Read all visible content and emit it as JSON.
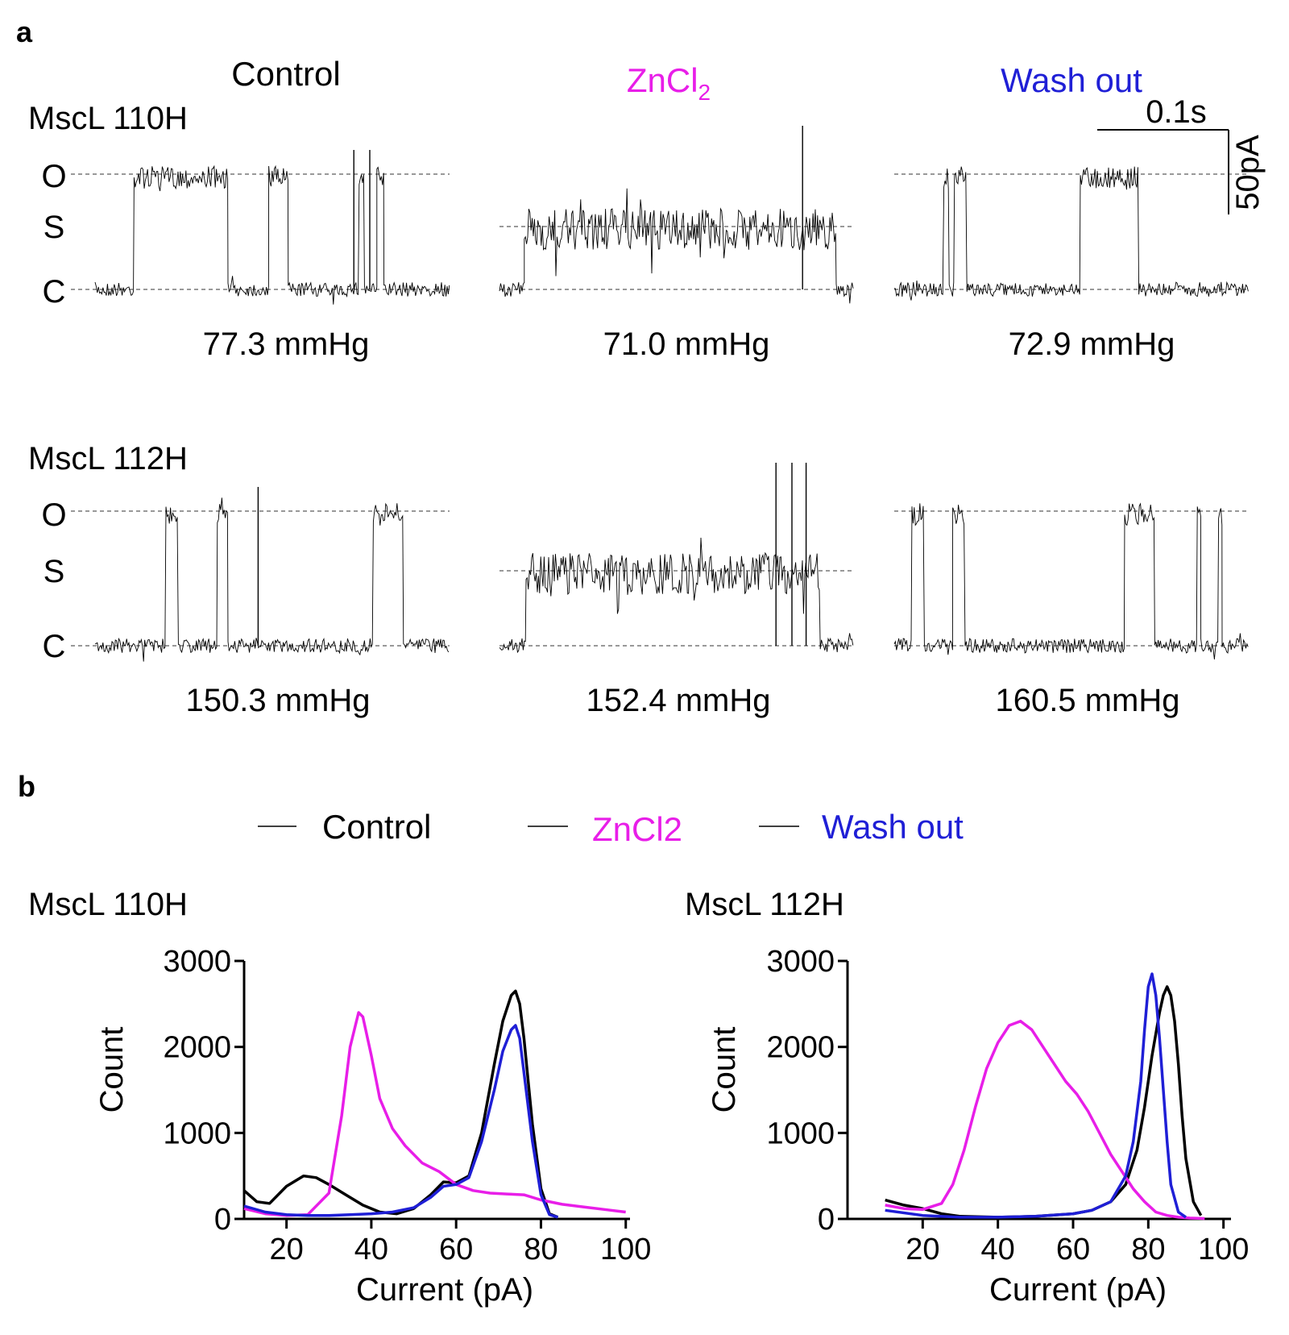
{
  "figure": {
    "panel_a_label": "a",
    "panel_b_label": "b",
    "conditions": [
      {
        "label": "Control",
        "color": "#000000"
      },
      {
        "label": "ZnCl",
        "sub": "2",
        "color": "#e81ee8"
      },
      {
        "label": "Wash out",
        "color": "#1f1fd6"
      }
    ],
    "states": [
      "O",
      "S",
      "C"
    ],
    "scalebar": {
      "time": "0.1s",
      "current": "50pA"
    },
    "rows": [
      {
        "name": "MscL 110H",
        "pressures": [
          "77.3  mmHg",
          "71.0  mmHg",
          "72.9  mmHg"
        ],
        "traces": [
          {
            "mode": "OC",
            "fracs": [
              0.0,
              0.11,
              0.375,
              0.49,
              0.545,
              0.745,
              0.76,
              0.795,
              0.815,
              1.0
            ],
            "spikes": [
              0.73,
              0.775
            ]
          },
          {
            "mode": "SC",
            "fracs": [
              0.0,
              0.07,
              0.95,
              1.0
            ],
            "spikes": [
              0.855
            ]
          },
          {
            "mode": "OC",
            "fracs": [
              0.0,
              0.14,
              0.155,
              0.17,
              0.205,
              0.525,
              0.69,
              1.0
            ],
            "spikes": []
          }
        ]
      },
      {
        "name": "MscL 112H",
        "pressures": [
          "150.3  mmHg",
          "152.4  mmHg",
          "160.5  mmHg"
        ],
        "traces": [
          {
            "mode": "OC",
            "fracs": [
              0.0,
              0.2,
              0.235,
              0.345,
              0.375,
              0.785,
              0.87,
              1.0
            ],
            "spikes": [
              0.46
            ]
          },
          {
            "mode": "SC",
            "fracs": [
              0.0,
              0.075,
              0.905,
              1.0
            ],
            "spikes": [
              0.78,
              0.825,
              0.865
            ]
          },
          {
            "mode": "OC",
            "fracs": [
              0.0,
              0.05,
              0.085,
              0.165,
              0.2,
              0.65,
              0.735,
              0.855,
              0.865,
              0.915,
              0.925,
              1.0
            ],
            "spikes": []
          }
        ]
      }
    ],
    "legend": [
      {
        "label": "Control",
        "color": "#000000"
      },
      {
        "label": "ZnCl2",
        "color": "#e81ee8"
      },
      {
        "label": "Wash out",
        "color": "#1f1fd6"
      }
    ]
  },
  "chart_data": [
    {
      "type": "line",
      "title": "MscL 110H",
      "xlabel": "Current (pA)",
      "ylabel": "Count",
      "xlim": [
        10,
        101
      ],
      "ylim": [
        0,
        3000
      ],
      "xticks": [
        20,
        40,
        60,
        80,
        100
      ],
      "yticks": [
        0,
        1000,
        2000,
        3000
      ],
      "series": [
        {
          "name": "Control",
          "color": "#000000",
          "x": [
            10,
            13,
            16,
            20,
            24,
            27,
            30,
            34,
            38,
            42,
            46,
            50,
            54,
            57,
            60,
            63,
            66,
            69,
            71,
            73,
            74,
            75,
            76,
            78,
            80,
            82,
            84
          ],
          "y": [
            330,
            200,
            180,
            380,
            500,
            480,
            400,
            280,
            160,
            80,
            60,
            120,
            280,
            430,
            420,
            500,
            1000,
            1800,
            2300,
            2600,
            2650,
            2500,
            2100,
            1100,
            350,
            60,
            20
          ]
        },
        {
          "name": "ZnCl2",
          "color": "#e81ee8",
          "x": [
            10,
            15,
            20,
            25,
            30,
            33,
            35,
            37,
            38,
            40,
            42,
            45,
            48,
            52,
            56,
            60,
            64,
            68,
            72,
            76,
            80,
            85,
            90,
            95,
            100
          ],
          "y": [
            120,
            60,
            40,
            50,
            300,
            1200,
            2000,
            2400,
            2350,
            1900,
            1400,
            1050,
            850,
            650,
            550,
            400,
            330,
            300,
            290,
            280,
            220,
            170,
            140,
            110,
            80
          ]
        },
        {
          "name": "Wash out",
          "color": "#1f1fd6",
          "x": [
            10,
            15,
            20,
            25,
            30,
            35,
            40,
            45,
            50,
            54,
            57,
            60,
            63,
            66,
            69,
            71,
            73,
            74,
            75,
            76,
            78,
            80,
            82,
            84
          ],
          "y": [
            150,
            80,
            50,
            40,
            40,
            50,
            60,
            80,
            130,
            250,
            380,
            400,
            480,
            900,
            1500,
            1950,
            2200,
            2250,
            2100,
            1700,
            900,
            280,
            50,
            20
          ]
        }
      ]
    },
    {
      "type": "line",
      "title": "MscL 112H",
      "xlabel": "Current (pA)",
      "ylabel": "Count",
      "xlim": [
        0,
        102
      ],
      "ylim": [
        0,
        3000
      ],
      "xticks": [
        20,
        40,
        60,
        80,
        100
      ],
      "yticks": [
        0,
        1000,
        2000,
        3000
      ],
      "series": [
        {
          "name": "Control",
          "color": "#000000",
          "x": [
            10,
            15,
            20,
            25,
            30,
            40,
            50,
            60,
            65,
            70,
            74,
            77,
            79,
            81,
            83,
            84,
            85,
            86,
            87,
            88,
            89,
            90,
            92,
            94
          ],
          "y": [
            220,
            160,
            120,
            60,
            30,
            20,
            30,
            60,
            100,
            200,
            400,
            800,
            1300,
            1900,
            2400,
            2600,
            2700,
            2600,
            2300,
            1800,
            1200,
            700,
            200,
            40
          ]
        },
        {
          "name": "ZnCl2",
          "color": "#e81ee8",
          "x": [
            10,
            15,
            20,
            25,
            28,
            31,
            34,
            37,
            40,
            43,
            46,
            49,
            52,
            55,
            58,
            61,
            64,
            67,
            70,
            73,
            76,
            79,
            82,
            85,
            88,
            91,
            95
          ],
          "y": [
            160,
            120,
            110,
            180,
            400,
            800,
            1300,
            1750,
            2050,
            2250,
            2300,
            2200,
            2000,
            1800,
            1600,
            1450,
            1250,
            1000,
            750,
            550,
            350,
            200,
            80,
            40,
            20,
            10,
            5
          ]
        },
        {
          "name": "Wash out",
          "color": "#1f1fd6",
          "x": [
            10,
            20,
            30,
            40,
            50,
            60,
            65,
            70,
            74,
            76,
            78,
            79,
            80,
            81,
            82,
            83,
            84,
            85,
            86,
            88,
            90
          ],
          "y": [
            100,
            40,
            20,
            20,
            30,
            60,
            100,
            200,
            500,
            900,
            1600,
            2200,
            2700,
            2850,
            2600,
            2100,
            1500,
            900,
            400,
            80,
            20
          ]
        }
      ]
    }
  ]
}
